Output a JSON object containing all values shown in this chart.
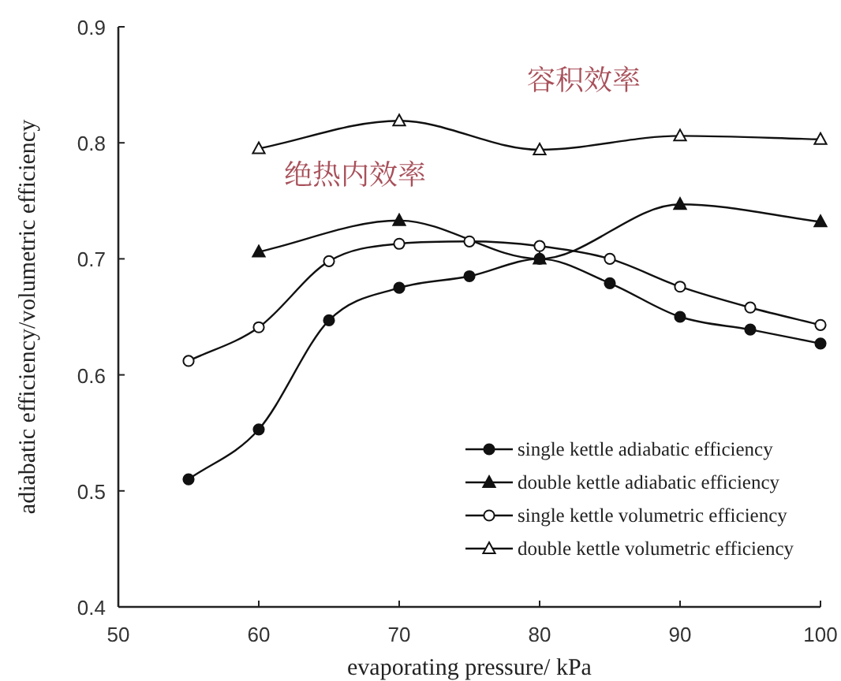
{
  "chart_data": {
    "type": "line",
    "xlabel": "evaporating pressure/ kPa",
    "ylabel": "adiabatic efficiency/volumetric efficiency",
    "xlim": [
      50,
      100
    ],
    "ylim": [
      0.4,
      0.9
    ],
    "xticks": [
      50,
      60,
      70,
      80,
      90,
      100
    ],
    "yticks": [
      0.4,
      0.5,
      0.6,
      0.7,
      0.8,
      0.9
    ],
    "grid": false,
    "legend": "bottom right",
    "series": [
      {
        "name": "single kettle adiabatic efficiency",
        "color": "#111111",
        "marker": "circle",
        "x": [
          55,
          60,
          65,
          70,
          75,
          80,
          85,
          90,
          95,
          100
        ],
        "values": [
          0.51,
          0.553,
          0.647,
          0.675,
          0.685,
          0.7,
          0.679,
          0.65,
          0.639,
          0.627
        ]
      },
      {
        "name": "double kettle adiabatic efficiency",
        "color": "#111111",
        "marker": "triangle",
        "x": [
          60,
          70,
          80,
          90,
          100
        ],
        "values": [
          0.706,
          0.733,
          0.7,
          0.747,
          0.732
        ]
      },
      {
        "name": "single kettle volumetric efficiency",
        "color": "#111111",
        "marker": "circle-open",
        "x": [
          55,
          60,
          65,
          70,
          75,
          80,
          85,
          90,
          95,
          100
        ],
        "values": [
          0.612,
          0.641,
          0.698,
          0.713,
          0.715,
          0.711,
          0.7,
          0.676,
          0.658,
          0.643
        ]
      },
      {
        "name": "double kettle volumetric efficiency",
        "color": "#111111",
        "marker": "triangle-open",
        "x": [
          60,
          70,
          80,
          90,
          100
        ],
        "values": [
          0.795,
          0.819,
          0.794,
          0.806,
          0.803
        ]
      }
    ],
    "annotations": [
      "容积效率",
      "绝热内效率"
    ]
  }
}
